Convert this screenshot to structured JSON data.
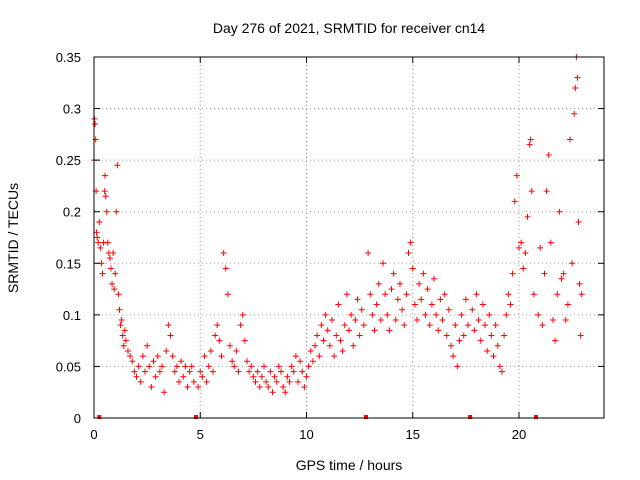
{
  "chart_data": {
    "type": "scatter",
    "title": "Day 276 of 2021, SRMTID for receiver cn14",
    "xlabel": "GPS time / hours",
    "ylabel": "SRMTID / TECUs",
    "xlim": [
      0,
      24
    ],
    "ylim": [
      0,
      0.35
    ],
    "grid": true,
    "marker": "+",
    "color": "#ff0000",
    "x_ticks": [
      0,
      5,
      10,
      15,
      20
    ],
    "x_tick_labels": [
      "0",
      "5",
      "10",
      "15",
      "20"
    ],
    "y_ticks": [
      0,
      0.05,
      0.1,
      0.15,
      0.2,
      0.25,
      0.3,
      0.35
    ],
    "y_tick_labels": [
      "0",
      "0.05",
      "0.1",
      "0.15",
      "0.2",
      "0.25",
      "0.3",
      "0.35"
    ],
    "data_gap_markers_x": [
      0.25,
      4.8,
      12.8,
      17.7,
      20.8
    ],
    "series": [
      {
        "name": "SRMTID",
        "points": [
          [
            0.0,
            0.25
          ],
          [
            0.02,
            0.29
          ],
          [
            0.05,
            0.285
          ],
          [
            0.08,
            0.27
          ],
          [
            0.1,
            0.22
          ],
          [
            0.12,
            0.18
          ],
          [
            0.15,
            0.175
          ],
          [
            0.2,
            0.17
          ],
          [
            0.25,
            0.19
          ],
          [
            0.3,
            0.165
          ],
          [
            0.35,
            0.15
          ],
          [
            0.4,
            0.14
          ],
          [
            0.45,
            0.17
          ],
          [
            0.5,
            0.22
          ],
          [
            0.52,
            0.235
          ],
          [
            0.55,
            0.215
          ],
          [
            0.6,
            0.2
          ],
          [
            0.65,
            0.17
          ],
          [
            0.7,
            0.16
          ],
          [
            0.75,
            0.155
          ],
          [
            0.8,
            0.145
          ],
          [
            0.85,
            0.13
          ],
          [
            0.9,
            0.16
          ],
          [
            0.95,
            0.125
          ],
          [
            1.0,
            0.14
          ],
          [
            1.05,
            0.2
          ],
          [
            1.1,
            0.245
          ],
          [
            1.15,
            0.12
          ],
          [
            1.2,
            0.105
          ],
          [
            1.25,
            0.09
          ],
          [
            1.3,
            0.095
          ],
          [
            1.35,
            0.08
          ],
          [
            1.4,
            0.07
          ],
          [
            1.45,
            0.085
          ],
          [
            1.5,
            0.075
          ],
          [
            1.6,
            0.065
          ],
          [
            1.7,
            0.06
          ],
          [
            1.8,
            0.055
          ],
          [
            1.9,
            0.045
          ],
          [
            2.0,
            0.04
          ],
          [
            2.1,
            0.05
          ],
          [
            2.2,
            0.035
          ],
          [
            2.3,
            0.06
          ],
          [
            2.4,
            0.045
          ],
          [
            2.5,
            0.07
          ],
          [
            2.6,
            0.05
          ],
          [
            2.7,
            0.03
          ],
          [
            2.8,
            0.055
          ],
          [
            2.9,
            0.04
          ],
          [
            3.0,
            0.06
          ],
          [
            3.1,
            0.045
          ],
          [
            3.2,
            0.05
          ],
          [
            3.3,
            0.025
          ],
          [
            3.4,
            0.065
          ],
          [
            3.5,
            0.09
          ],
          [
            3.6,
            0.08
          ],
          [
            3.7,
            0.06
          ],
          [
            3.8,
            0.045
          ],
          [
            3.9,
            0.05
          ],
          [
            4.0,
            0.035
          ],
          [
            4.1,
            0.055
          ],
          [
            4.2,
            0.04
          ],
          [
            4.3,
            0.05
          ],
          [
            4.4,
            0.03
          ],
          [
            4.5,
            0.045
          ],
          [
            4.6,
            0.05
          ],
          [
            4.7,
            0.035
          ],
          [
            4.9,
            0.03
          ],
          [
            5.0,
            0.045
          ],
          [
            5.1,
            0.04
          ],
          [
            5.2,
            0.06
          ],
          [
            5.3,
            0.035
          ],
          [
            5.4,
            0.05
          ],
          [
            5.5,
            0.065
          ],
          [
            5.6,
            0.045
          ],
          [
            5.7,
            0.08
          ],
          [
            5.8,
            0.09
          ],
          [
            5.9,
            0.075
          ],
          [
            6.0,
            0.06
          ],
          [
            6.1,
            0.16
          ],
          [
            6.2,
            0.145
          ],
          [
            6.3,
            0.12
          ],
          [
            6.4,
            0.07
          ],
          [
            6.5,
            0.055
          ],
          [
            6.6,
            0.05
          ],
          [
            6.7,
            0.065
          ],
          [
            6.8,
            0.045
          ],
          [
            6.9,
            0.09
          ],
          [
            7.0,
            0.1
          ],
          [
            7.1,
            0.075
          ],
          [
            7.2,
            0.055
          ],
          [
            7.3,
            0.045
          ],
          [
            7.4,
            0.05
          ],
          [
            7.5,
            0.04
          ],
          [
            7.6,
            0.035
          ],
          [
            7.7,
            0.045
          ],
          [
            7.8,
            0.03
          ],
          [
            7.9,
            0.04
          ],
          [
            8.0,
            0.05
          ],
          [
            8.1,
            0.035
          ],
          [
            8.2,
            0.03
          ],
          [
            8.3,
            0.045
          ],
          [
            8.4,
            0.025
          ],
          [
            8.5,
            0.04
          ],
          [
            8.6,
            0.035
          ],
          [
            8.7,
            0.05
          ],
          [
            8.8,
            0.045
          ],
          [
            8.9,
            0.03
          ],
          [
            9.0,
            0.025
          ],
          [
            9.1,
            0.04
          ],
          [
            9.2,
            0.035
          ],
          [
            9.3,
            0.05
          ],
          [
            9.4,
            0.045
          ],
          [
            9.5,
            0.06
          ],
          [
            9.6,
            0.035
          ],
          [
            9.7,
            0.055
          ],
          [
            9.8,
            0.045
          ],
          [
            9.9,
            0.03
          ],
          [
            10.0,
            0.04
          ],
          [
            10.1,
            0.05
          ],
          [
            10.2,
            0.065
          ],
          [
            10.3,
            0.055
          ],
          [
            10.4,
            0.07
          ],
          [
            10.5,
            0.08
          ],
          [
            10.6,
            0.06
          ],
          [
            10.7,
            0.09
          ],
          [
            10.8,
            0.075
          ],
          [
            10.9,
            0.1
          ],
          [
            11.0,
            0.085
          ],
          [
            11.1,
            0.07
          ],
          [
            11.2,
            0.095
          ],
          [
            11.3,
            0.06
          ],
          [
            11.4,
            0.08
          ],
          [
            11.5,
            0.11
          ],
          [
            11.6,
            0.075
          ],
          [
            11.7,
            0.065
          ],
          [
            11.8,
            0.09
          ],
          [
            11.9,
            0.12
          ],
          [
            12.0,
            0.085
          ],
          [
            12.1,
            0.1
          ],
          [
            12.2,
            0.07
          ],
          [
            12.3,
            0.095
          ],
          [
            12.4,
            0.115
          ],
          [
            12.5,
            0.08
          ],
          [
            12.6,
            0.105
          ],
          [
            12.7,
            0.09
          ],
          [
            12.9,
            0.16
          ],
          [
            13.0,
            0.12
          ],
          [
            13.1,
            0.1
          ],
          [
            13.2,
            0.085
          ],
          [
            13.3,
            0.11
          ],
          [
            13.4,
            0.13
          ],
          [
            13.5,
            0.095
          ],
          [
            13.6,
            0.15
          ],
          [
            13.7,
            0.12
          ],
          [
            13.8,
            0.1
          ],
          [
            13.9,
            0.085
          ],
          [
            14.0,
            0.125
          ],
          [
            14.1,
            0.14
          ],
          [
            14.2,
            0.095
          ],
          [
            14.3,
            0.115
          ],
          [
            14.4,
            0.13
          ],
          [
            14.5,
            0.105
          ],
          [
            14.6,
            0.09
          ],
          [
            14.7,
            0.12
          ],
          [
            14.8,
            0.16
          ],
          [
            14.9,
            0.17
          ],
          [
            15.0,
            0.145
          ],
          [
            15.1,
            0.11
          ],
          [
            15.2,
            0.095
          ],
          [
            15.3,
            0.13
          ],
          [
            15.4,
            0.115
          ],
          [
            15.5,
            0.14
          ],
          [
            15.6,
            0.1
          ],
          [
            15.7,
            0.125
          ],
          [
            15.8,
            0.09
          ],
          [
            15.9,
            0.11
          ],
          [
            16.0,
            0.135
          ],
          [
            16.1,
            0.1
          ],
          [
            16.2,
            0.085
          ],
          [
            16.3,
            0.115
          ],
          [
            16.4,
            0.095
          ],
          [
            16.5,
            0.12
          ],
          [
            16.6,
            0.08
          ],
          [
            16.7,
            0.105
          ],
          [
            16.8,
            0.07
          ],
          [
            16.9,
            0.06
          ],
          [
            17.0,
            0.09
          ],
          [
            17.1,
            0.05
          ],
          [
            17.2,
            0.075
          ],
          [
            17.3,
            0.1
          ],
          [
            17.4,
            0.08
          ],
          [
            17.5,
            0.115
          ],
          [
            17.6,
            0.09
          ],
          [
            17.8,
            0.105
          ],
          [
            17.9,
            0.085
          ],
          [
            18.0,
            0.12
          ],
          [
            18.1,
            0.095
          ],
          [
            18.2,
            0.075
          ],
          [
            18.3,
            0.11
          ],
          [
            18.4,
            0.09
          ],
          [
            18.5,
            0.065
          ],
          [
            18.6,
            0.1
          ],
          [
            18.7,
            0.08
          ],
          [
            18.8,
            0.06
          ],
          [
            18.9,
            0.09
          ],
          [
            19.0,
            0.07
          ],
          [
            19.1,
            0.05
          ],
          [
            19.2,
            0.045
          ],
          [
            19.3,
            0.08
          ],
          [
            19.4,
            0.1
          ],
          [
            19.5,
            0.12
          ],
          [
            19.6,
            0.11
          ],
          [
            19.7,
            0.14
          ],
          [
            19.8,
            0.21
          ],
          [
            19.9,
            0.235
          ],
          [
            20.0,
            0.165
          ],
          [
            20.1,
            0.17
          ],
          [
            20.2,
            0.145
          ],
          [
            20.3,
            0.16
          ],
          [
            20.4,
            0.195
          ],
          [
            20.5,
            0.265
          ],
          [
            20.55,
            0.27
          ],
          [
            20.6,
            0.22
          ],
          [
            20.7,
            0.12
          ],
          [
            20.9,
            0.1
          ],
          [
            21.0,
            0.165
          ],
          [
            21.1,
            0.09
          ],
          [
            21.2,
            0.14
          ],
          [
            21.3,
            0.22
          ],
          [
            21.4,
            0.255
          ],
          [
            21.5,
            0.17
          ],
          [
            21.6,
            0.095
          ],
          [
            21.7,
            0.075
          ],
          [
            21.8,
            0.12
          ],
          [
            21.9,
            0.2
          ],
          [
            22.0,
            0.135
          ],
          [
            22.1,
            0.14
          ],
          [
            22.2,
            0.095
          ],
          [
            22.3,
            0.11
          ],
          [
            22.4,
            0.27
          ],
          [
            22.5,
            0.15
          ],
          [
            22.6,
            0.295
          ],
          [
            22.65,
            0.32
          ],
          [
            22.7,
            0.35
          ],
          [
            22.75,
            0.33
          ],
          [
            22.8,
            0.19
          ],
          [
            22.85,
            0.13
          ],
          [
            22.9,
            0.08
          ],
          [
            22.95,
            0.12
          ]
        ]
      }
    ]
  }
}
